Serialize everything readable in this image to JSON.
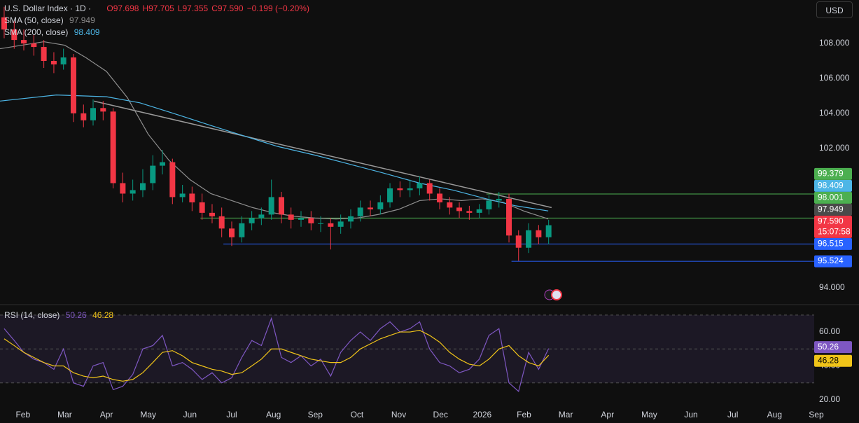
{
  "chart_data": [
    {
      "type": "candlestick",
      "title": "U.S. Dollar Index · 1D ·",
      "ohlc_text": [
        "O97.698",
        "H97.705",
        "L97.355",
        "C97.590",
        "−0.199 (−0.20%)"
      ],
      "currency": "USD",
      "x": [
        1.55,
        1.79,
        2.02,
        2.26,
        2.5,
        2.74,
        2.97,
        3.21,
        3.45,
        3.68,
        3.92,
        4.16,
        4.39,
        4.63,
        4.87,
        5.11,
        5.34,
        5.58,
        5.82,
        6.05,
        6.29,
        6.53,
        6.76,
        7,
        7.24,
        7.48,
        7.71,
        7.95,
        8.19,
        8.42,
        8.66,
        8.9,
        9.13,
        9.37,
        9.61,
        9.85,
        10.08,
        10.32,
        10.56,
        10.79,
        11.03,
        11.27,
        11.5,
        11.74,
        11.98,
        12.22,
        12.45,
        12.69,
        12.93,
        13.16,
        13.4,
        13.64,
        13.87,
        14.11,
        14.35,
        14.59
      ],
      "open": [
        109.5,
        108.8,
        108.2,
        108.0,
        107.8,
        107.0,
        106.8,
        107.2,
        104.0,
        103.6,
        104.3,
        104.1,
        100.0,
        99.4,
        99.6,
        100.0,
        101.0,
        101.2,
        99.2,
        99.4,
        98.9,
        98.3,
        98.1,
        97.4,
        96.9,
        97.7,
        98.0,
        98.2,
        99.2,
        98.2,
        97.9,
        98.0,
        97.7,
        97.7,
        97.5,
        97.8,
        98.1,
        98.6,
        98.5,
        98.9,
        99.7,
        99.6,
        99.7,
        100.0,
        99.4,
        98.9,
        98.6,
        98.4,
        98.3,
        98.5,
        99.0,
        99.1,
        97.0,
        96.3,
        97.3,
        96.9
      ],
      "high": [
        110.1,
        109.3,
        108.8,
        108.5,
        108.2,
        107.5,
        107.7,
        107.4,
        104.5,
        104.8,
        104.7,
        104.3,
        100.6,
        100.2,
        100.8,
        101.6,
        101.9,
        101.4,
        99.9,
        99.8,
        99.4,
        98.8,
        98.6,
        97.8,
        98.1,
        98.4,
        98.6,
        100.2,
        99.5,
        98.6,
        98.4,
        98.4,
        98.1,
        98.0,
        98.2,
        98.5,
        99.0,
        99.0,
        99.3,
        100.0,
        100.1,
        100.2,
        100.4,
        100.2,
        99.7,
        99.2,
        98.9,
        98.7,
        98.8,
        99.3,
        99.5,
        99.4,
        97.3,
        97.7,
        97.6,
        97.9
      ],
      "low": [
        108.3,
        107.7,
        107.6,
        107.3,
        106.6,
        106.3,
        106.5,
        103.5,
        103.2,
        103.3,
        103.6,
        99.7,
        98.9,
        99.0,
        99.2,
        99.6,
        100.5,
        98.8,
        98.9,
        98.4,
        97.9,
        97.7,
        96.9,
        96.4,
        96.6,
        97.3,
        97.6,
        97.9,
        97.7,
        97.4,
        97.5,
        97.3,
        97.2,
        96.2,
        97.1,
        97.4,
        97.8,
        98.1,
        98.2,
        98.6,
        99.2,
        99.2,
        99.3,
        99.0,
        98.5,
        98.2,
        98.0,
        97.9,
        98.0,
        98.2,
        98.6,
        96.6,
        95.55,
        96.0,
        96.5,
        96.5
      ],
      "close": [
        108.8,
        108.2,
        108.0,
        107.8,
        107.0,
        106.8,
        107.2,
        104.0,
        103.6,
        104.3,
        104.1,
        100.0,
        99.4,
        99.6,
        100.0,
        101.0,
        101.2,
        99.2,
        99.4,
        98.9,
        98.3,
        98.1,
        97.4,
        96.9,
        97.7,
        98.0,
        98.2,
        99.2,
        98.2,
        97.9,
        98.0,
        97.7,
        97.7,
        97.5,
        97.8,
        98.1,
        98.6,
        98.5,
        98.9,
        99.7,
        99.6,
        99.7,
        100.0,
        99.4,
        98.9,
        98.6,
        98.4,
        98.3,
        98.5,
        99.0,
        99.1,
        97.0,
        96.3,
        97.3,
        96.9,
        97.59
      ],
      "up_color": "#089981",
      "down_color": "#f23645",
      "last_price": {
        "value": 97.59,
        "label": "97.590"
      },
      "countdown": "15:07:58",
      "series": [
        {
          "name": "SMA (50, close)",
          "color": "#8f8f8f",
          "x": [
            1.45,
            2.5,
            3.0,
            3.5,
            4.0,
            4.5,
            5.0,
            5.5,
            6.0,
            6.5,
            7.0,
            7.5,
            8.0,
            8.5,
            9.0,
            9.5,
            10.0,
            10.5,
            11.0,
            11.5,
            12.0,
            12.5,
            13.0,
            13.5,
            14.0,
            14.58
          ],
          "values": [
            107.7,
            108.1,
            107.9,
            107.2,
            106.4,
            104.9,
            102.8,
            101.3,
            100.2,
            99.4,
            99.0,
            98.6,
            98.3,
            98.1,
            98.0,
            97.95,
            98.0,
            98.2,
            98.5,
            99.0,
            99.1,
            99.0,
            99.1,
            98.9,
            98.4,
            97.949
          ]
        },
        {
          "name": "SMA (200, close)",
          "color": "#4db6e6",
          "x": [
            1.45,
            2.8,
            4.0,
            4.8,
            5.6,
            6.5,
            7.3,
            8.1,
            9.0,
            9.8,
            10.6,
            11.5,
            12.3,
            13.1,
            13.8,
            14.58
          ],
          "values": [
            104.7,
            105.05,
            104.95,
            104.6,
            104.0,
            103.3,
            102.7,
            102.1,
            101.6,
            101.1,
            100.6,
            100.0,
            99.6,
            99.1,
            98.7,
            98.409
          ]
        }
      ],
      "trendline": {
        "color": "#9a9a9a",
        "x": [
          3.7,
          14.66
        ],
        "values": [
          104.7,
          98.6
        ]
      },
      "levels": [
        {
          "price": {
            "value": 99.379,
            "label": "99.379"
          },
          "color": "#4caf50",
          "start": 13.1
        },
        {
          "price": {
            "value": 98.001,
            "label": "98.001"
          },
          "color": "#4caf50",
          "start": 6.25
        },
        {
          "price": {
            "value": 96.515,
            "label": "96.515"
          },
          "color": "#2962ff",
          "start": 6.8
        },
        {
          "price": {
            "value": 95.524,
            "label": "95.524"
          },
          "color": "#2962ff",
          "start": 13.7
        }
      ],
      "xlim": [
        1.45,
        20.95
      ],
      "xticks": [
        {
          "value": 2,
          "label": "Feb"
        },
        {
          "value": 3,
          "label": "Mar"
        },
        {
          "value": 4,
          "label": "Apr"
        },
        {
          "value": 5,
          "label": "May"
        },
        {
          "value": 6,
          "label": "Jun"
        },
        {
          "value": 7,
          "label": "Jul"
        },
        {
          "value": 8,
          "label": "Aug"
        },
        {
          "value": 9,
          "label": "Sep"
        },
        {
          "value": 10,
          "label": "Oct"
        },
        {
          "value": 11,
          "label": "Nov"
        },
        {
          "value": 12,
          "label": "Dec"
        },
        {
          "value": 13,
          "label": "2026"
        },
        {
          "value": 14,
          "label": "Feb"
        },
        {
          "value": 15,
          "label": "Mar"
        },
        {
          "value": 16,
          "label": "Apr"
        },
        {
          "value": 17,
          "label": "May"
        },
        {
          "value": 18,
          "label": "Jun"
        },
        {
          "value": 19,
          "label": "Jul"
        },
        {
          "value": 20,
          "label": "Aug"
        },
        {
          "value": 21,
          "label": "Sep"
        }
      ],
      "ylim": [
        93.12,
        110.49
      ],
      "yticks": [
        {
          "value": 94,
          "label": "94.000"
        },
        {
          "value": 102,
          "label": "102.000"
        },
        {
          "value": 104,
          "label": "104.000"
        },
        {
          "value": 106,
          "label": "106.000"
        },
        {
          "value": 108,
          "label": "108.000"
        }
      ]
    },
    {
      "type": "line",
      "title": "RSI (14, close)",
      "x": [
        1.55,
        1.79,
        2.02,
        2.26,
        2.5,
        2.74,
        2.97,
        3.21,
        3.45,
        3.68,
        3.92,
        4.16,
        4.39,
        4.63,
        4.87,
        5.11,
        5.34,
        5.58,
        5.82,
        6.05,
        6.29,
        6.53,
        6.76,
        7,
        7.24,
        7.48,
        7.71,
        7.95,
        8.19,
        8.42,
        8.66,
        8.9,
        9.13,
        9.37,
        9.61,
        9.85,
        10.08,
        10.32,
        10.56,
        10.79,
        11.03,
        11.27,
        11.5,
        11.74,
        11.98,
        12.22,
        12.45,
        12.69,
        12.93,
        13.16,
        13.4,
        13.64,
        13.87,
        14.11,
        14.35,
        14.59
      ],
      "series": [
        {
          "color": "#7e57c2",
          "values": [
            62,
            55,
            48,
            44,
            42,
            38,
            50,
            30,
            28,
            40,
            42,
            26,
            28,
            35,
            50,
            52,
            58,
            40,
            42,
            38,
            32,
            36,
            30,
            33,
            45,
            55,
            52,
            68,
            45,
            42,
            46,
            40,
            44,
            34,
            48,
            55,
            60,
            55,
            62,
            66,
            60,
            62,
            66,
            50,
            42,
            40,
            36,
            38,
            44,
            58,
            62,
            30,
            25,
            48,
            38,
            50.26
          ]
        },
        {
          "color": "#f0c419",
          "values": [
            56,
            52,
            48,
            45,
            42,
            40,
            40,
            36,
            34,
            33,
            34,
            32,
            31,
            32,
            36,
            42,
            48,
            49,
            46,
            42,
            40,
            38,
            37,
            35,
            36,
            40,
            44,
            50,
            50,
            48,
            46,
            44,
            43,
            42,
            42,
            45,
            50,
            53,
            56,
            58,
            60,
            60,
            61,
            58,
            54,
            48,
            44,
            41,
            40,
            44,
            50,
            52,
            46,
            42,
            40,
            46.28
          ]
        }
      ],
      "levels": [
        70,
        50,
        30
      ],
      "ylim": [
        14.2,
        75.3
      ],
      "yticks": [
        {
          "value": 20,
          "label": "20.00"
        },
        {
          "value": 40,
          "label": "40.00"
        },
        {
          "value": 60,
          "label": "60.00"
        }
      ]
    }
  ]
}
